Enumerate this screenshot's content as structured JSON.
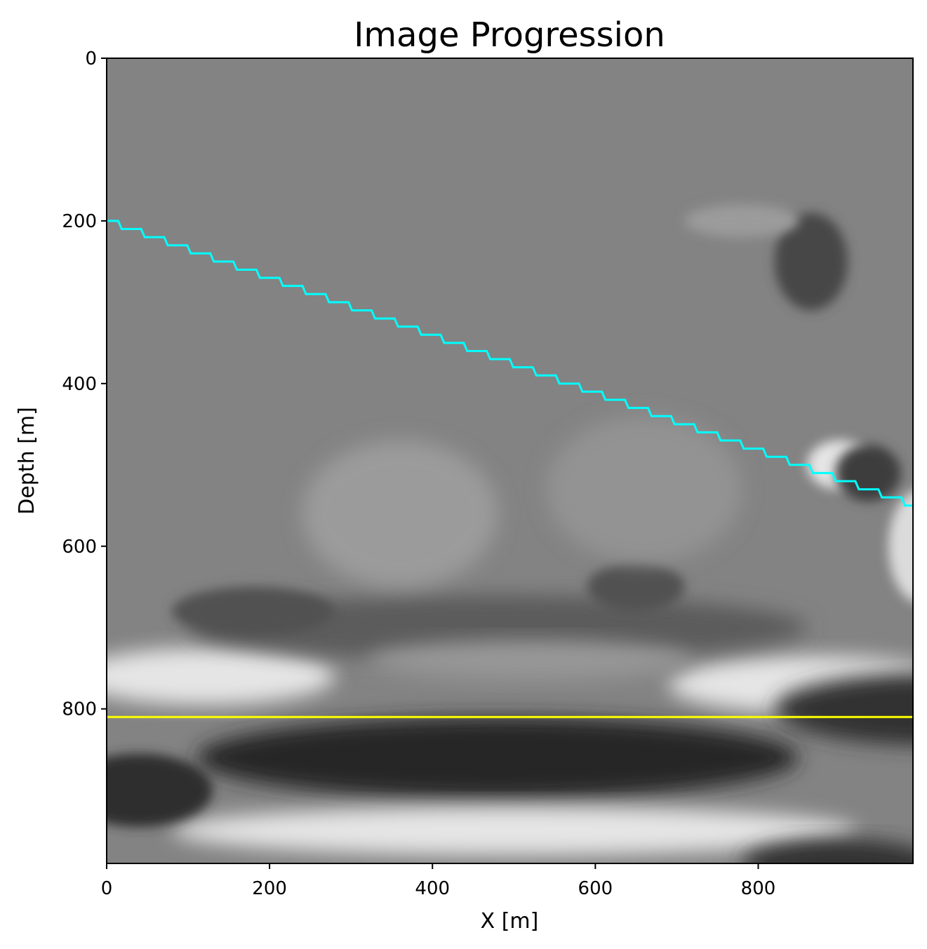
{
  "chart_data": {
    "type": "heatmap",
    "title": "Image Progression",
    "xlabel": "X [m]",
    "ylabel": "Depth [m]",
    "xlim": [
      0,
      990
    ],
    "ylim": [
      990,
      0
    ],
    "xticks": [
      0,
      200,
      400,
      600,
      800
    ],
    "yticks": [
      0,
      200,
      400,
      600,
      800
    ],
    "colormap": "gray",
    "colors": {
      "cyan_line": "#00ffff",
      "yellow_line": "#ffff00",
      "background_gray": "#838383",
      "bright": "#f0f0f0",
      "dark": "#1c1c1c"
    },
    "series": [
      {
        "type": "line",
        "color": "#00ffff",
        "x": [
          0,
          990
        ],
        "y": [
          200,
          550
        ],
        "steps": 35
      },
      {
        "type": "line",
        "color": "#ffff00",
        "x": [
          0,
          990
        ],
        "y": [
          810,
          810
        ]
      }
    ],
    "image_features": [
      {
        "kind": "ellipse",
        "cx": 480,
        "cy": 860,
        "rx": 370,
        "ry": 50,
        "value": 0.05
      },
      {
        "kind": "ellipse",
        "cx": 120,
        "cy": 760,
        "rx": 160,
        "ry": 35,
        "value": 0.95
      },
      {
        "kind": "ellipse",
        "cx": 870,
        "cy": 770,
        "rx": 180,
        "ry": 35,
        "value": 0.95
      },
      {
        "kind": "ellipse",
        "cx": 500,
        "cy": 950,
        "rx": 420,
        "ry": 30,
        "value": 0.95
      },
      {
        "kind": "ellipse",
        "cx": 40,
        "cy": 900,
        "rx": 90,
        "ry": 45,
        "value": 0.08
      },
      {
        "kind": "ellipse",
        "cx": 1020,
        "cy": 800,
        "rx": 200,
        "ry": 45,
        "value": 0.1
      },
      {
        "kind": "ellipse",
        "cx": 900,
        "cy": 990,
        "rx": 120,
        "ry": 30,
        "value": 0.1
      },
      {
        "kind": "ellipse",
        "cx": 480,
        "cy": 700,
        "rx": 380,
        "ry": 40,
        "value": 0.3
      },
      {
        "kind": "ellipse",
        "cx": 180,
        "cy": 680,
        "rx": 100,
        "ry": 30,
        "value": 0.25
      },
      {
        "kind": "ellipse",
        "cx": 900,
        "cy": 500,
        "rx": 40,
        "ry": 30,
        "value": 0.95
      },
      {
        "kind": "ellipse",
        "cx": 935,
        "cy": 510,
        "rx": 40,
        "ry": 35,
        "value": 0.15
      },
      {
        "kind": "ellipse",
        "cx": 865,
        "cy": 250,
        "rx": 45,
        "ry": 60,
        "value": 0.2
      },
      {
        "kind": "ellipse",
        "cx": 650,
        "cy": 650,
        "rx": 60,
        "ry": 30,
        "value": 0.25
      },
      {
        "kind": "ellipse",
        "cx": 360,
        "cy": 560,
        "rx": 120,
        "ry": 90,
        "value": 0.6
      },
      {
        "kind": "ellipse",
        "cx": 660,
        "cy": 530,
        "rx": 120,
        "ry": 90,
        "value": 0.56
      },
      {
        "kind": "ellipse",
        "cx": 520,
        "cy": 740,
        "rx": 200,
        "ry": 25,
        "value": 0.58
      },
      {
        "kind": "ellipse",
        "cx": 780,
        "cy": 200,
        "rx": 70,
        "ry": 20,
        "value": 0.6
      },
      {
        "kind": "ellipse",
        "cx": 1000,
        "cy": 600,
        "rx": 40,
        "ry": 70,
        "value": 0.9
      }
    ]
  }
}
